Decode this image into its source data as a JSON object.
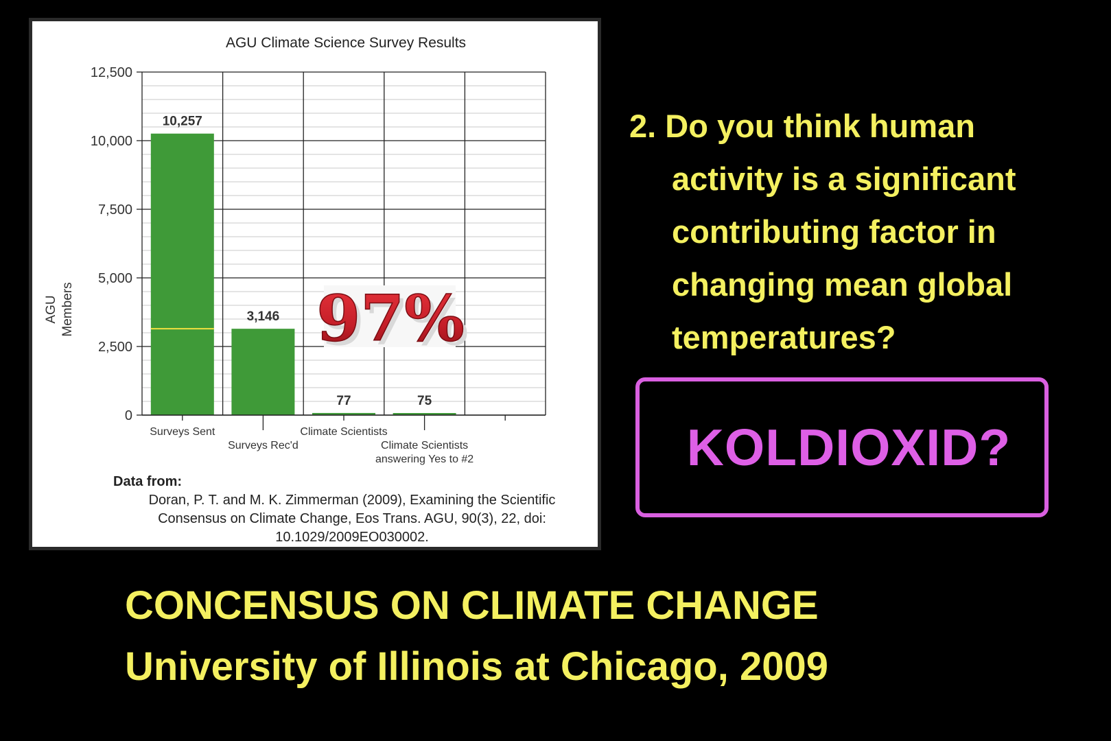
{
  "chart_data": {
    "type": "bar",
    "title": "AGU Climate Science Survey Results",
    "ylabel": "AGU Members",
    "xlabel": "",
    "ylim": [
      0,
      12500
    ],
    "yticks": [
      0,
      2500,
      5000,
      7500,
      10000,
      12500
    ],
    "ytick_labels": [
      "0",
      "2,500",
      "5,000",
      "7,500",
      "10,000",
      "12,500"
    ],
    "categories": [
      "Surveys Sent",
      "Surveys Rec'd",
      "Climate Scientists",
      "Climate Scientists answering Yes to #2"
    ],
    "category_label_lines": [
      [
        "Surveys Sent"
      ],
      [
        "Surveys Rec'd"
      ],
      [
        "Climate Scientists"
      ],
      [
        "Climate Scientists",
        "answering Yes to #2"
      ]
    ],
    "values": [
      10257,
      3146,
      77,
      75
    ],
    "data_labels": [
      "10,257",
      "3,146",
      "77",
      "75"
    ],
    "reference_line_value": 3146,
    "annotation": "97%",
    "grid": true,
    "bar_color": "#3f9a38"
  },
  "source": {
    "heading": "Data from:",
    "lines": [
      "Doran, P. T. and M. K. Zimmerman (2009), Examining the Scientific",
      "Consensus on Climate Change, Eos Trans. AGU, 90(3), 22, doi:",
      "10.1029/2009EO030002."
    ]
  },
  "question": {
    "lines": [
      "2. Do you think human",
      "activity is a significant",
      "contributing factor  in",
      "changing mean global",
      "temperatures?"
    ]
  },
  "callout": "KOLDIOXID?",
  "bottom": {
    "line1": "CONCENSUS ON CLIMATE CHANGE",
    "line2": "University of Illinois at Chicago, 2009"
  },
  "colors": {
    "background": "#000000",
    "yellow_text": "#f4f060",
    "magenta": "#de5fe6",
    "bar_green": "#3f9a38",
    "percent_red": "#c8202a"
  }
}
